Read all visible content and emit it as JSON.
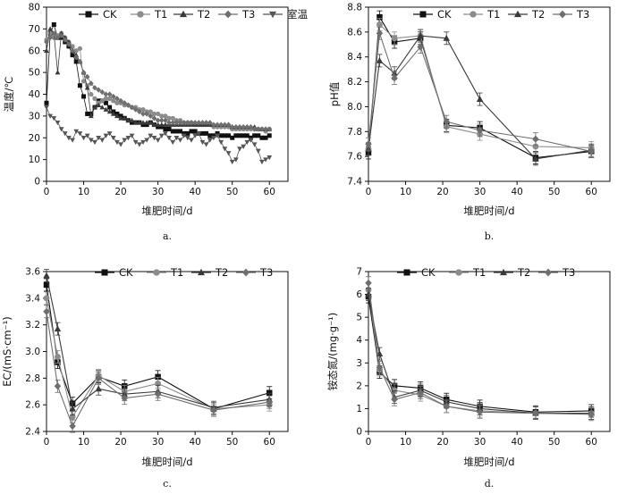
{
  "chart_data": [
    {
      "id": "a",
      "type": "line",
      "caption": "a.",
      "xlabel": "堆肥时间/d",
      "ylabel": "温度/℃",
      "xlim": [
        0,
        65
      ],
      "ylim": [
        0,
        80
      ],
      "xticks": [
        0,
        10,
        20,
        30,
        40,
        50,
        60
      ],
      "yticks": [
        0,
        10,
        20,
        30,
        40,
        50,
        60,
        70,
        80
      ],
      "legend_position": "top",
      "series": [
        {
          "name": "CK",
          "marker": "square",
          "color": "#111111",
          "x": [
            0,
            1,
            2,
            3,
            4,
            5,
            6,
            7,
            8,
            9,
            10,
            11,
            12,
            13,
            14,
            15,
            16,
            17,
            18,
            19,
            20,
            21,
            22,
            23,
            24,
            25,
            26,
            27,
            28,
            29,
            30,
            31,
            32,
            33,
            34,
            35,
            36,
            37,
            38,
            39,
            40,
            41,
            42,
            43,
            44,
            45,
            46,
            47,
            48,
            49,
            50,
            51,
            52,
            53,
            54,
            55,
            56,
            57,
            58,
            59,
            60
          ],
          "values": [
            36,
            68,
            72,
            66,
            66,
            64,
            62,
            58,
            55,
            44,
            39,
            31,
            31,
            34,
            37,
            37,
            36,
            34,
            32,
            31,
            30,
            29,
            28,
            27,
            27,
            27,
            26,
            26,
            27,
            26,
            25,
            25,
            24,
            24,
            23,
            23,
            23,
            22,
            22,
            23,
            23,
            22,
            22,
            22,
            21,
            21,
            22,
            21,
            21,
            21,
            20,
            21,
            21,
            21,
            21,
            20,
            21,
            21,
            20,
            20,
            21
          ]
        },
        {
          "name": "T1",
          "marker": "circle",
          "color": "#8c8c8c",
          "x": [
            0,
            1,
            2,
            3,
            4,
            5,
            6,
            7,
            8,
            9,
            10,
            11,
            12,
            13,
            14,
            15,
            16,
            17,
            18,
            19,
            20,
            21,
            22,
            23,
            24,
            25,
            26,
            27,
            28,
            29,
            30,
            31,
            32,
            33,
            34,
            35,
            36,
            37,
            38,
            39,
            40,
            41,
            42,
            43,
            44,
            45,
            46,
            47,
            48,
            49,
            50,
            51,
            52,
            53,
            54,
            55,
            56,
            57,
            58,
            59,
            60
          ],
          "values": [
            65,
            68,
            66,
            67,
            68,
            66,
            64,
            62,
            60,
            61,
            46,
            44,
            40,
            38,
            36,
            37,
            38,
            38,
            37,
            36,
            36,
            35,
            35,
            34,
            34,
            33,
            33,
            32,
            32,
            31,
            31,
            30,
            30,
            29,
            29,
            28,
            28,
            27,
            27,
            27,
            26,
            26,
            26,
            26,
            26,
            25,
            25,
            25,
            25,
            25,
            24,
            24,
            24,
            24,
            24,
            24,
            24,
            24,
            24,
            23,
            24
          ]
        },
        {
          "name": "T2",
          "marker": "triangle",
          "color": "#3a3a3a",
          "x": [
            0,
            1,
            2,
            3,
            4,
            5,
            6,
            7,
            8,
            9,
            10,
            11,
            12,
            13,
            14,
            15,
            16,
            17,
            18,
            19,
            20,
            21,
            22,
            23,
            24,
            25,
            26,
            27,
            28,
            29,
            30,
            31,
            32,
            33,
            34,
            35,
            36,
            37,
            38,
            39,
            40,
            41,
            42,
            43,
            44,
            45,
            46,
            47,
            48,
            49,
            50,
            51,
            52,
            53,
            54,
            55,
            56,
            57,
            58,
            59,
            60
          ],
          "values": [
            60,
            70,
            68,
            50,
            68,
            66,
            64,
            60,
            58,
            55,
            50,
            43,
            30,
            34,
            35,
            34,
            33,
            32,
            31,
            30,
            29,
            29,
            28,
            28,
            27,
            27,
            27,
            27,
            27,
            26,
            26,
            26,
            26,
            26,
            26,
            26,
            26,
            26,
            26,
            26,
            26,
            26,
            26,
            26,
            26,
            26,
            26,
            26,
            26,
            26,
            25,
            25,
            25,
            25,
            25,
            25,
            25,
            24,
            24,
            24,
            24
          ]
        },
        {
          "name": "T3",
          "marker": "diamond",
          "color": "#6e6e6e",
          "x": [
            0,
            1,
            2,
            3,
            4,
            5,
            6,
            7,
            8,
            9,
            10,
            11,
            12,
            13,
            14,
            15,
            16,
            17,
            18,
            19,
            20,
            21,
            22,
            23,
            24,
            25,
            26,
            27,
            28,
            29,
            30,
            31,
            32,
            33,
            34,
            35,
            36,
            37,
            38,
            39,
            40,
            41,
            42,
            43,
            44,
            45,
            46,
            47,
            48,
            49,
            50,
            51,
            52,
            53,
            54,
            55,
            56,
            57,
            58,
            59,
            60
          ],
          "values": [
            64,
            66,
            68,
            66,
            67,
            65,
            63,
            60,
            57,
            55,
            50,
            48,
            45,
            43,
            42,
            41,
            40,
            40,
            39,
            38,
            37,
            36,
            35,
            34,
            33,
            32,
            31,
            31,
            30,
            29,
            28,
            28,
            28,
            27,
            27,
            27,
            27,
            27,
            27,
            27,
            27,
            27,
            27,
            27,
            27,
            26,
            26,
            26,
            26,
            26,
            25,
            25,
            25,
            25,
            25,
            25,
            24,
            24,
            24,
            24,
            24
          ]
        },
        {
          "name": "室温",
          "marker": "triangle-down",
          "color": "#555555",
          "x": [
            0,
            1,
            2,
            3,
            4,
            5,
            6,
            7,
            8,
            9,
            10,
            11,
            12,
            13,
            14,
            15,
            16,
            17,
            18,
            19,
            20,
            21,
            22,
            23,
            24,
            25,
            26,
            27,
            28,
            29,
            30,
            31,
            32,
            33,
            34,
            35,
            36,
            37,
            38,
            39,
            40,
            41,
            42,
            43,
            44,
            45,
            46,
            47,
            48,
            49,
            50,
            51,
            52,
            53,
            54,
            55,
            56,
            57,
            58,
            59,
            60
          ],
          "values": [
            34,
            30,
            29,
            27,
            24,
            22,
            20,
            19,
            23,
            22,
            20,
            21,
            19,
            18,
            20,
            19,
            21,
            22,
            20,
            18,
            17,
            19,
            20,
            21,
            18,
            17,
            18,
            19,
            21,
            20,
            19,
            21,
            22,
            20,
            18,
            20,
            19,
            21,
            20,
            19,
            21,
            22,
            18,
            17,
            19,
            20,
            21,
            18,
            15,
            13,
            9,
            10,
            15,
            16,
            18,
            19,
            17,
            14,
            9,
            10,
            11
          ]
        }
      ]
    },
    {
      "id": "b",
      "type": "line",
      "caption": "b.",
      "xlabel": "堆肥时间/d",
      "ylabel": "pH值",
      "xlim": [
        0,
        65
      ],
      "ylim": [
        7.4,
        8.8
      ],
      "xticks": [
        0,
        10,
        20,
        30,
        40,
        50,
        60
      ],
      "yticks": [
        7.4,
        7.6,
        7.8,
        8.0,
        8.2,
        8.4,
        8.6,
        8.8
      ],
      "legend_position": "top",
      "x": [
        0,
        3,
        7,
        14,
        21,
        30,
        45,
        60
      ],
      "series": [
        {
          "name": "CK",
          "marker": "square",
          "color": "#111111",
          "values": [
            7.63,
            8.72,
            8.52,
            8.55,
            7.85,
            7.83,
            7.59,
            7.64
          ]
        },
        {
          "name": "T1",
          "marker": "circle",
          "color": "#8c8c8c",
          "values": [
            7.66,
            8.66,
            8.55,
            8.57,
            7.84,
            7.78,
            7.68,
            7.67
          ]
        },
        {
          "name": "T2",
          "marker": "triangle",
          "color": "#3a3a3a",
          "values": [
            7.66,
            8.37,
            8.27,
            8.57,
            8.55,
            8.06,
            7.58,
            7.65
          ]
        },
        {
          "name": "T3",
          "marker": "diamond",
          "color": "#6e6e6e",
          "values": [
            7.7,
            8.59,
            8.23,
            8.48,
            7.88,
            7.81,
            7.74,
            7.64
          ]
        }
      ]
    },
    {
      "id": "c",
      "type": "line",
      "caption": "c.",
      "xlabel": "堆肥时间/d",
      "ylabel": "EC/(mS·cm⁻¹)",
      "xlim": [
        0,
        65
      ],
      "ylim": [
        2.4,
        3.6
      ],
      "xticks": [
        0,
        10,
        20,
        30,
        40,
        50,
        60
      ],
      "yticks": [
        2.4,
        2.6,
        2.8,
        3.0,
        3.2,
        3.4,
        3.6
      ],
      "legend_position": "top",
      "x": [
        0,
        3,
        7,
        14,
        21,
        30,
        45,
        60
      ],
      "series": [
        {
          "name": "CK",
          "marker": "square",
          "color": "#111111",
          "values": [
            3.5,
            2.92,
            2.61,
            2.81,
            2.74,
            2.81,
            2.57,
            2.69
          ]
        },
        {
          "name": "T1",
          "marker": "circle",
          "color": "#8c8c8c",
          "values": [
            3.4,
            2.96,
            2.51,
            2.82,
            2.7,
            2.76,
            2.57,
            2.6
          ]
        },
        {
          "name": "T2",
          "marker": "triangle",
          "color": "#3a3a3a",
          "values": [
            3.57,
            3.17,
            2.57,
            2.72,
            2.68,
            2.7,
            2.58,
            2.64
          ]
        },
        {
          "name": "T3",
          "marker": "diamond",
          "color": "#6e6e6e",
          "values": [
            3.3,
            2.74,
            2.44,
            2.8,
            2.65,
            2.68,
            2.56,
            2.62
          ]
        }
      ]
    },
    {
      "id": "d",
      "type": "line",
      "caption": "d.",
      "xlabel": "堆肥时间/d",
      "ylabel": "铵态氮/(mg·g⁻¹)",
      "xlim": [
        0,
        65
      ],
      "ylim": [
        0,
        7
      ],
      "xticks": [
        0,
        10,
        20,
        30,
        40,
        50,
        60
      ],
      "yticks": [
        0,
        1,
        2,
        3,
        4,
        5,
        6,
        7
      ],
      "legend_position": "top",
      "x": [
        0,
        3,
        7,
        14,
        21,
        30,
        45,
        60
      ],
      "series": [
        {
          "name": "CK",
          "marker": "square",
          "color": "#111111",
          "values": [
            5.9,
            2.6,
            2.0,
            1.9,
            1.4,
            1.1,
            0.85,
            0.9
          ]
        },
        {
          "name": "T1",
          "marker": "circle",
          "color": "#8c8c8c",
          "values": [
            6.2,
            2.7,
            1.8,
            1.6,
            1.1,
            0.9,
            0.8,
            0.8
          ]
        },
        {
          "name": "T2",
          "marker": "triangle",
          "color": "#3a3a3a",
          "values": [
            6.0,
            3.4,
            1.5,
            1.8,
            1.3,
            1.0,
            0.8,
            0.8
          ]
        },
        {
          "name": "T3",
          "marker": "diamond",
          "color": "#6e6e6e",
          "values": [
            6.5,
            2.8,
            1.4,
            1.7,
            1.1,
            0.85,
            0.8,
            0.75
          ]
        }
      ]
    }
  ]
}
